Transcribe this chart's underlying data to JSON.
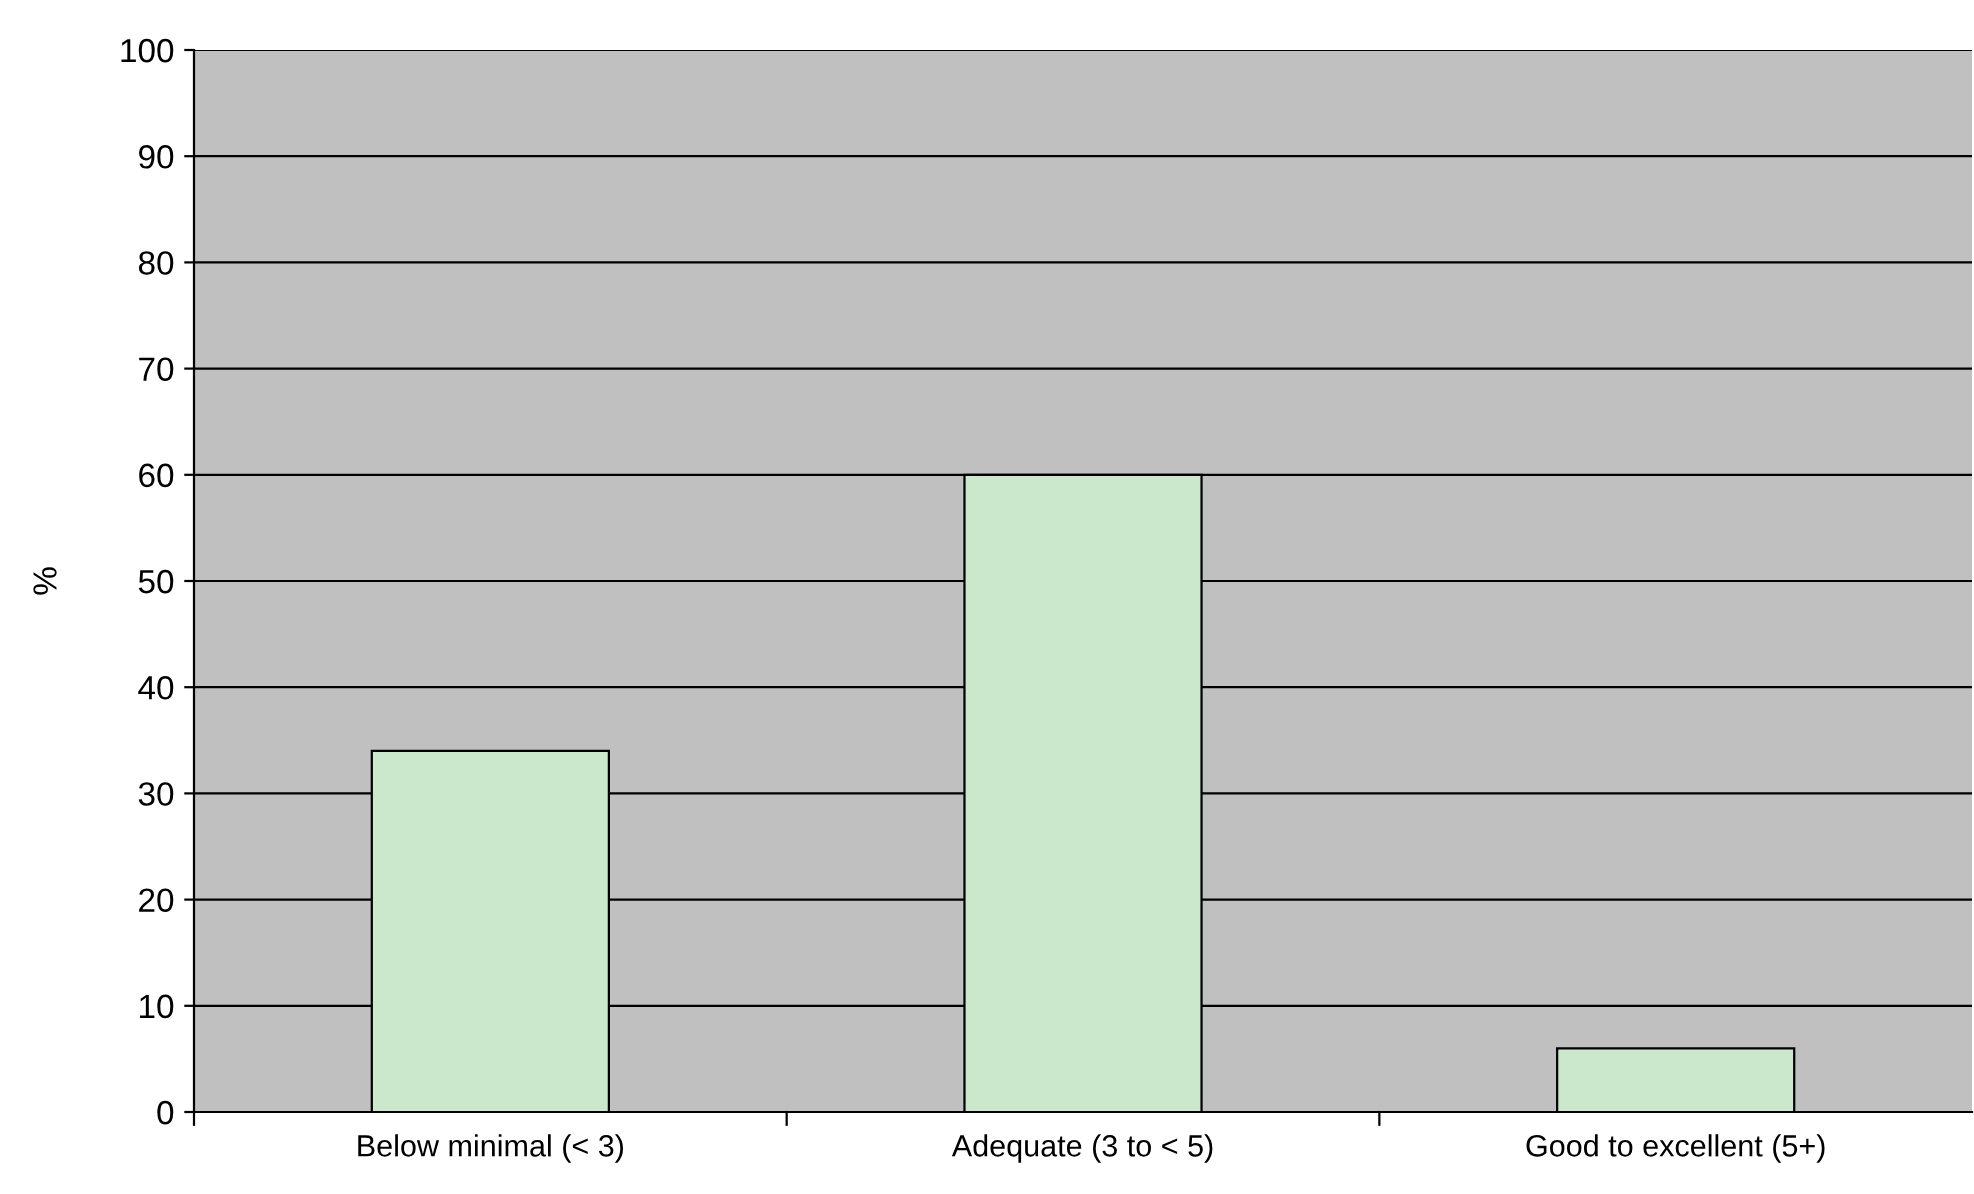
{
  "chart_data": {
    "type": "bar",
    "ylabel": "%",
    "categories": [
      "Below minimal (< 3)",
      "Adequate (3 to < 5)",
      "Good to excellent (5+)"
    ],
    "values": [
      34,
      60,
      6
    ],
    "color": "#cce8cc",
    "ylim": [
      0,
      100
    ],
    "yticks": [
      0,
      10,
      20,
      30,
      40,
      50,
      60,
      70,
      80,
      90,
      100
    ],
    "grid": "y"
  }
}
